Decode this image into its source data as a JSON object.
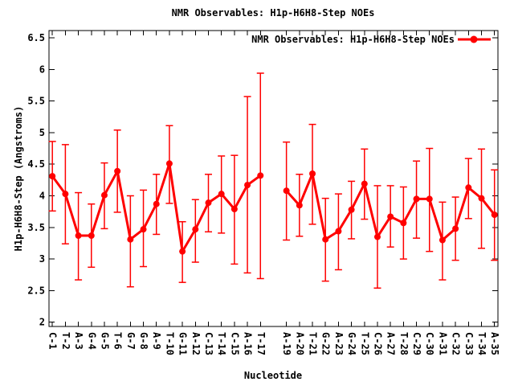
{
  "chart_data": {
    "type": "line",
    "title": "NMR Observables: H1p-H6H8-Step NOEs",
    "xlabel": "Nucleotide",
    "ylabel": "H1p-H6H8-Step (Angstroms)",
    "legend": {
      "label": "NMR Observables: H1p-H6H8-Step NOEs",
      "position": "top-right-inside",
      "sample": "line-with-filled-circle"
    },
    "series_color": "#ff0000",
    "axis_color": "#000000",
    "background_color": "#ffffff",
    "grid": false,
    "error_bars": true,
    "marker": "filled-circle",
    "ylim": [
      2,
      6.5
    ],
    "y_tick_step": 0.5,
    "y_tick_labels": [
      "2",
      "2.5",
      "3",
      "3.5",
      "4",
      "4.5",
      "5",
      "5.5",
      "6",
      "6.5"
    ],
    "x_tick_labels_rotated_90": true,
    "points": [
      {
        "label": "C-1",
        "value": 4.31,
        "lo": 3.76,
        "hi": 4.86
      },
      {
        "label": "T-2",
        "value": 4.03,
        "lo": 3.24,
        "hi": 4.81
      },
      {
        "label": "A-3",
        "value": 3.37,
        "lo": 2.67,
        "hi": 4.05
      },
      {
        "label": "G-4",
        "value": 3.37,
        "lo": 2.87,
        "hi": 3.87
      },
      {
        "label": "G-5",
        "value": 4.01,
        "lo": 3.48,
        "hi": 4.52
      },
      {
        "label": "T-6",
        "value": 4.39,
        "lo": 3.74,
        "hi": 5.04
      },
      {
        "label": "G-7",
        "value": 3.31,
        "lo": 2.56,
        "hi": 4.0
      },
      {
        "label": "G-8",
        "value": 3.47,
        "lo": 2.88,
        "hi": 4.09
      },
      {
        "label": "A-9",
        "value": 3.87,
        "lo": 3.39,
        "hi": 4.34
      },
      {
        "label": "T-10",
        "value": 4.51,
        "lo": 3.88,
        "hi": 5.11
      },
      {
        "label": "G-11",
        "value": 3.12,
        "lo": 2.63,
        "hi": 3.59
      },
      {
        "label": "A-12",
        "value": 3.47,
        "lo": 2.95,
        "hi": 3.94
      },
      {
        "label": "C-13",
        "value": 3.89,
        "lo": 3.43,
        "hi": 4.34
      },
      {
        "label": "T-14",
        "value": 4.03,
        "lo": 3.41,
        "hi": 4.63
      },
      {
        "label": "C-15",
        "value": 3.79,
        "lo": 2.92,
        "hi": 4.64
      },
      {
        "label": "A-16",
        "value": 4.17,
        "lo": 2.78,
        "hi": 5.57
      },
      {
        "label": "T-17",
        "value": 4.32,
        "lo": 2.69,
        "hi": 5.94
      },
      {
        "label": null,
        "value": null,
        "lo": null,
        "hi": null
      },
      {
        "label": "A-19",
        "value": 4.08,
        "lo": 3.3,
        "hi": 4.85
      },
      {
        "label": "A-20",
        "value": 3.85,
        "lo": 3.36,
        "hi": 4.34
      },
      {
        "label": "T-21",
        "value": 4.35,
        "lo": 3.55,
        "hi": 5.13
      },
      {
        "label": "G-22",
        "value": 3.31,
        "lo": 2.65,
        "hi": 3.96
      },
      {
        "label": "A-23",
        "value": 3.44,
        "lo": 2.83,
        "hi": 4.03
      },
      {
        "label": "G-24",
        "value": 3.78,
        "lo": 3.32,
        "hi": 4.23
      },
      {
        "label": "T-25",
        "value": 4.19,
        "lo": 3.63,
        "hi": 4.74
      },
      {
        "label": "C-26",
        "value": 3.35,
        "lo": 2.54,
        "hi": 4.16
      },
      {
        "label": "A-27",
        "value": 3.67,
        "lo": 3.19,
        "hi": 4.16
      },
      {
        "label": "T-28",
        "value": 3.57,
        "lo": 3.0,
        "hi": 4.14
      },
      {
        "label": "C-29",
        "value": 3.95,
        "lo": 3.33,
        "hi": 4.55
      },
      {
        "label": "C-30",
        "value": 3.95,
        "lo": 3.12,
        "hi": 4.75
      },
      {
        "label": "A-31",
        "value": 3.3,
        "lo": 2.67,
        "hi": 3.9
      },
      {
        "label": "C-32",
        "value": 3.48,
        "lo": 2.98,
        "hi": 3.98
      },
      {
        "label": "C-33",
        "value": 4.13,
        "lo": 3.64,
        "hi": 4.59
      },
      {
        "label": "T-34",
        "value": 3.96,
        "lo": 3.17,
        "hi": 4.74
      },
      {
        "label": "A-35",
        "value": 3.7,
        "lo": 2.98,
        "hi": 4.41
      }
    ]
  }
}
